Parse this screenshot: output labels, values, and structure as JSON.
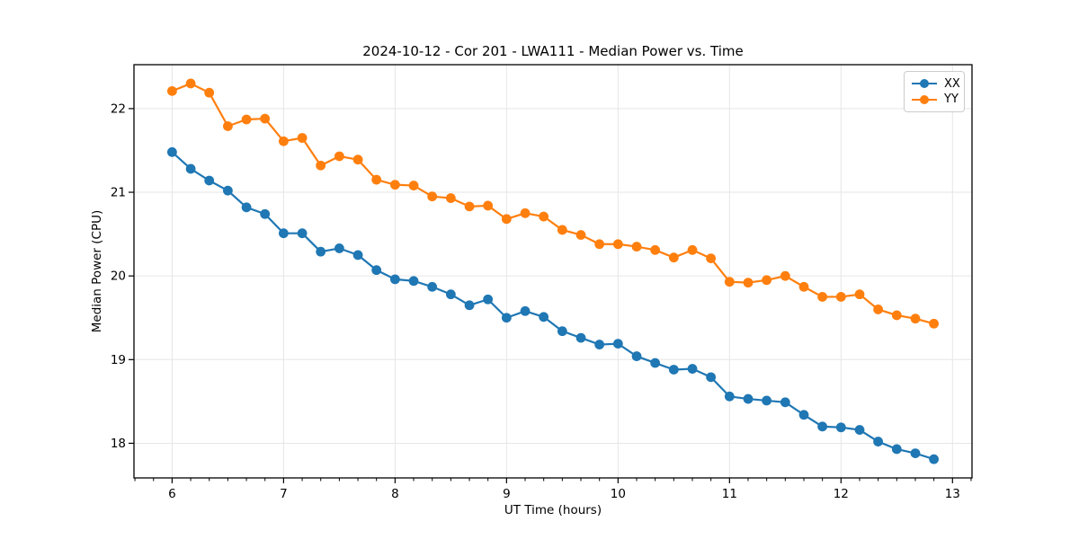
{
  "chart_data": {
    "type": "line",
    "title": "2024-10-12 - Cor 201 - LWA111 - Median Power vs. Time",
    "xlabel": "UT Time (hours)",
    "ylabel": "Median Power (CPU)",
    "xlim": [
      5.658,
      13.175
    ],
    "ylim": [
      17.586,
      22.525
    ],
    "x_major_ticks": [
      6,
      7,
      8,
      9,
      10,
      11,
      12,
      13
    ],
    "y_major_ticks": [
      18,
      19,
      20,
      21,
      22
    ],
    "x_minor_divisions": 6,
    "grid": "major",
    "marker": "o",
    "legend_position": "upper right",
    "x": [
      6.0,
      6.167,
      6.333,
      6.5,
      6.667,
      6.833,
      7.0,
      7.167,
      7.333,
      7.5,
      7.667,
      7.833,
      8.0,
      8.167,
      8.333,
      8.5,
      8.667,
      8.833,
      9.0,
      9.167,
      9.333,
      9.5,
      9.667,
      9.833,
      10.0,
      10.167,
      10.333,
      10.5,
      10.667,
      10.833,
      11.0,
      11.167,
      11.333,
      11.5,
      11.667,
      11.833,
      12.0,
      12.167,
      12.333,
      12.5,
      12.667,
      12.833
    ],
    "series": [
      {
        "name": "XX",
        "color": "#1f77b4",
        "values": [
          21.48,
          21.28,
          21.14,
          21.02,
          20.82,
          20.74,
          20.51,
          20.51,
          20.29,
          20.33,
          20.25,
          20.07,
          19.96,
          19.94,
          19.87,
          19.78,
          19.65,
          19.72,
          19.5,
          19.58,
          19.51,
          19.34,
          19.26,
          19.18,
          19.19,
          19.04,
          18.96,
          18.88,
          18.89,
          18.79,
          18.56,
          18.53,
          18.51,
          18.49,
          18.34,
          18.2,
          18.19,
          18.16,
          18.02,
          17.93,
          17.88,
          17.81
        ]
      },
      {
        "name": "YY",
        "color": "#ff7f0e",
        "values": [
          22.21,
          22.3,
          22.19,
          21.79,
          21.87,
          21.88,
          21.61,
          21.65,
          21.32,
          21.43,
          21.39,
          21.15,
          21.09,
          21.08,
          20.95,
          20.93,
          20.83,
          20.84,
          20.68,
          20.75,
          20.71,
          20.55,
          20.49,
          20.38,
          20.38,
          20.35,
          20.31,
          20.22,
          20.31,
          20.21,
          19.93,
          19.92,
          19.95,
          20.0,
          19.87,
          19.75,
          19.75,
          19.78,
          19.6,
          19.53,
          19.49,
          19.43
        ]
      }
    ],
    "style": {
      "grid_color": "#e6e6e6",
      "axis_color": "#000000",
      "background": "#ffffff"
    }
  }
}
